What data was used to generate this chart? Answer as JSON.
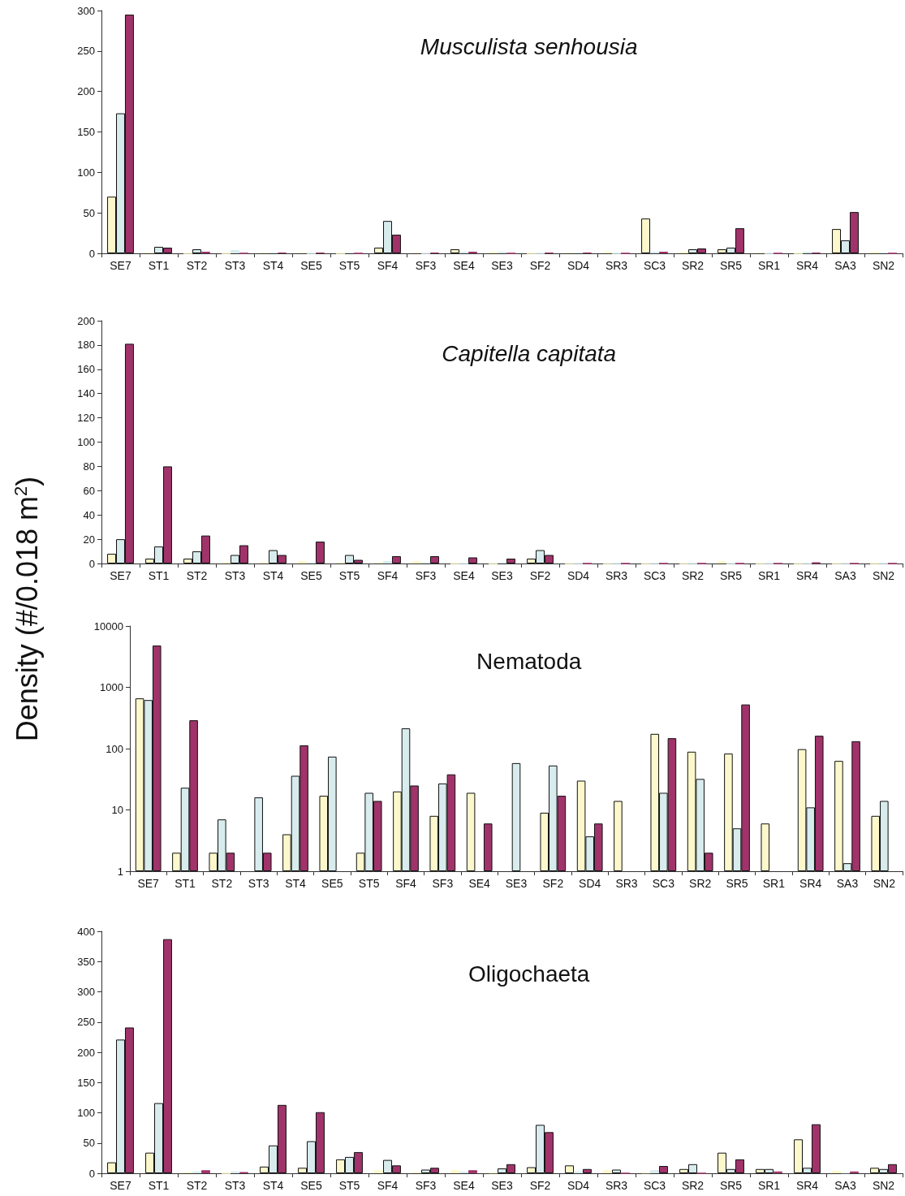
{
  "chart_data": [
    {
      "type": "bar",
      "title": "Musculista senhousia",
      "categories": [
        "SE7",
        "ST1",
        "ST2",
        "ST3",
        "ST4",
        "SE5",
        "ST5",
        "SF4",
        "SF3",
        "SE4",
        "SE3",
        "SF2",
        "SD4",
        "SR3",
        "SC3",
        "SR2",
        "SR5",
        "SR1",
        "SR4",
        "SA3",
        "SN2"
      ],
      "ylim": [
        0,
        300
      ],
      "yticks": [
        0,
        50,
        100,
        150,
        200,
        250,
        300
      ],
      "grid": false,
      "series": [
        {
          "color": "#fcf8cc",
          "values": [
            70,
            1,
            0,
            0,
            1,
            1,
            0,
            7,
            1,
            5,
            2,
            0,
            1,
            2,
            43,
            2,
            5,
            1,
            0,
            30,
            2
          ]
        },
        {
          "color": "#d8ecee",
          "values": [
            173,
            8,
            5,
            4,
            1,
            0,
            1,
            40,
            0,
            2,
            2,
            0,
            1,
            0,
            2,
            5,
            7,
            0,
            2,
            16,
            1
          ]
        },
        {
          "color": "#a0336a",
          "values": [
            295,
            7,
            2,
            0,
            1,
            1,
            0,
            23,
            1,
            2,
            0,
            1,
            1,
            0,
            2,
            6,
            31,
            0,
            1,
            51,
            0
          ]
        }
      ]
    },
    {
      "type": "bar",
      "title": "Capitella capitata",
      "categories": [
        "SE7",
        "ST1",
        "ST2",
        "ST3",
        "ST4",
        "SE5",
        "ST5",
        "SF4",
        "SF3",
        "SE4",
        "SE3",
        "SF2",
        "SD4",
        "SR3",
        "SC3",
        "SR2",
        "SR5",
        "SR1",
        "SR4",
        "SA3",
        "SN2"
      ],
      "ylim": [
        0,
        200
      ],
      "yticks": [
        0,
        20,
        40,
        60,
        80,
        100,
        120,
        140,
        160,
        180,
        200
      ],
      "grid": false,
      "series": [
        {
          "color": "#fcf8cc",
          "values": [
            8,
            4,
            4,
            1,
            1,
            2,
            1,
            1,
            2,
            0,
            0,
            4,
            0,
            0,
            0,
            0,
            2,
            0,
            0,
            0,
            0
          ]
        },
        {
          "color": "#d8ecee",
          "values": [
            20,
            14,
            10,
            7,
            11,
            1,
            7,
            2,
            1,
            0,
            1,
            11,
            0,
            0,
            0,
            0,
            0,
            0,
            0,
            0,
            0
          ]
        },
        {
          "color": "#a0336a",
          "values": [
            181,
            80,
            23,
            15,
            7,
            18,
            3,
            6,
            6,
            5,
            4,
            7,
            0,
            0,
            0,
            0,
            0,
            0,
            1,
            0,
            0
          ]
        }
      ]
    },
    {
      "type": "bar",
      "title": "Nematoda",
      "ylabel": "Density (#/0.018 m$^{2}$)",
      "categories": [
        "SE7",
        "ST1",
        "ST2",
        "ST3",
        "ST4",
        "SE5",
        "ST5",
        "SF4",
        "SF3",
        "SE4",
        "SE3",
        "SF2",
        "SD4",
        "SR3",
        "SC3",
        "SR2",
        "SR5",
        "SR1",
        "SR4",
        "SA3",
        "SN2"
      ],
      "log": "y",
      "ylim": [
        1,
        10000
      ],
      "yticks": [
        1,
        10,
        100,
        1000,
        10000
      ],
      "grid": false,
      "series": [
        {
          "color": "#fcf8cc",
          "values": [
            660,
            2,
            2,
            null,
            4,
            17,
            2,
            20,
            8,
            19,
            null,
            9,
            30,
            14,
            174,
            89,
            83,
            6,
            98,
            63,
            8
          ]
        },
        {
          "color": "#d8ecee",
          "values": [
            620,
            23,
            7,
            16,
            36,
            74,
            19,
            214,
            27,
            null,
            58,
            53,
            3.7,
            null,
            19,
            32,
            5,
            null,
            11,
            1.35,
            14
          ]
        },
        {
          "color": "#a0336a",
          "values": [
            4800,
            290,
            2,
            2,
            113,
            null,
            14,
            25,
            38,
            6,
            null,
            17,
            6,
            null,
            148,
            2,
            525,
            null,
            162,
            132,
            null
          ]
        }
      ]
    },
    {
      "type": "bar",
      "title": "Oligochaeta",
      "categories": [
        "SE7",
        "ST1",
        "ST2",
        "ST3",
        "ST4",
        "SE5",
        "ST5",
        "SF4",
        "SF3",
        "SE4",
        "SE3",
        "SF2",
        "SD4",
        "SR3",
        "SC3",
        "SR2",
        "SR5",
        "SR1",
        "SR4",
        "SA3",
        "SN2"
      ],
      "ylim": [
        0,
        400
      ],
      "yticks": [
        0,
        50,
        100,
        150,
        200,
        250,
        300,
        350,
        400
      ],
      "grid": false,
      "series": [
        {
          "color": "#fcf8cc",
          "values": [
            18,
            34,
            2,
            0,
            11,
            9,
            23,
            5,
            2,
            5,
            1,
            10,
            13,
            5,
            1,
            7,
            34,
            7,
            56,
            4,
            9
          ]
        },
        {
          "color": "#d8ecee",
          "values": [
            221,
            116,
            3,
            3,
            46,
            53,
            27,
            22,
            6,
            3,
            8,
            80,
            3,
            6,
            5,
            15,
            7,
            7,
            9,
            1,
            7
          ]
        },
        {
          "color": "#a0336a",
          "values": [
            241,
            387,
            5,
            2,
            113,
            101,
            35,
            13,
            9,
            5,
            15,
            68,
            7,
            0,
            12,
            0,
            23,
            3,
            81,
            3,
            15
          ]
        }
      ]
    }
  ]
}
